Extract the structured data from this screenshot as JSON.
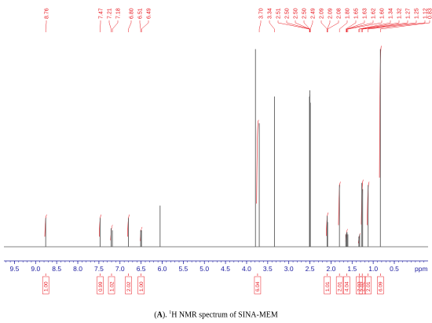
{
  "chart_data": {
    "type": "line",
    "title": "",
    "xlabel": "ppm",
    "ylabel": "",
    "x_reversed": true,
    "xlim": [
      9.75,
      -0.3
    ],
    "x_ticks": [
      "9.5",
      "9.0",
      "8.5",
      "8.0",
      "7.5",
      "7.0",
      "6.5",
      "6.0",
      "5.5",
      "5.0",
      "4.5",
      "4.0",
      "3.5",
      "3.0",
      "2.5",
      "2.0",
      "1.5",
      "1.0",
      "0.5"
    ],
    "peaks": [
      {
        "ppm": 8.76,
        "height": 0.14
      },
      {
        "ppm": 7.47,
        "height": 0.14
      },
      {
        "ppm": 7.21,
        "height": 0.09
      },
      {
        "ppm": 7.18,
        "height": 0.08
      },
      {
        "ppm": 6.8,
        "height": 0.14
      },
      {
        "ppm": 6.51,
        "height": 0.08
      },
      {
        "ppm": 6.49,
        "height": 0.08
      },
      {
        "ppm": 6.05,
        "height": 0.2
      },
      {
        "ppm": 3.79,
        "height": 0.96
      },
      {
        "ppm": 3.7,
        "height": 0.6
      },
      {
        "ppm": 3.34,
        "height": 0.73
      },
      {
        "ppm": 2.51,
        "height": 0.73
      },
      {
        "ppm": 2.5,
        "height": 0.76
      },
      {
        "ppm": 2.5,
        "height": 0.74
      },
      {
        "ppm": 2.5,
        "height": 0.72
      },
      {
        "ppm": 2.49,
        "height": 0.7
      },
      {
        "ppm": 2.09,
        "height": 0.15
      },
      {
        "ppm": 2.09,
        "height": 0.13
      },
      {
        "ppm": 2.08,
        "height": 0.12
      },
      {
        "ppm": 1.8,
        "height": 0.3
      },
      {
        "ppm": 1.65,
        "height": 0.06
      },
      {
        "ppm": 1.63,
        "height": 0.07
      },
      {
        "ppm": 1.62,
        "height": 0.07
      },
      {
        "ppm": 1.6,
        "height": 0.06
      },
      {
        "ppm": 1.34,
        "height": 0.05
      },
      {
        "ppm": 1.32,
        "height": 0.06
      },
      {
        "ppm": 1.27,
        "height": 0.31
      },
      {
        "ppm": 1.25,
        "height": 0.28
      },
      {
        "ppm": 1.12,
        "height": 0.3
      },
      {
        "ppm": 0.83,
        "height": 0.96
      }
    ],
    "peak_labels": [
      "8.76",
      "7.47",
      "7.21",
      "7.18",
      "6.80",
      "6.51",
      "6.49",
      "3.70",
      "3.34",
      "2.51",
      "2.50",
      "2.50",
      "2.50",
      "2.49",
      "2.09",
      "2.09",
      "2.08",
      "1.80",
      "1.65",
      "1.63",
      "1.62",
      "1.60",
      "1.34",
      "1.32",
      "1.27",
      "1.25",
      "1.12",
      "0.83"
    ],
    "integrals": [
      {
        "ppm": 8.76,
        "label": "1.00"
      },
      {
        "ppm": 7.47,
        "label": "0.99"
      },
      {
        "ppm": 7.2,
        "label": "1.02"
      },
      {
        "ppm": 6.8,
        "label": "2.02"
      },
      {
        "ppm": 6.5,
        "label": "1.00"
      },
      {
        "ppm": 3.74,
        "label": "6.04"
      },
      {
        "ppm": 2.09,
        "label": "1.01"
      },
      {
        "ppm": 1.8,
        "label": "2.01"
      },
      {
        "ppm": 1.63,
        "label": "4.04"
      },
      {
        "ppm": 1.33,
        "label": "2.03"
      },
      {
        "ppm": 1.26,
        "label": "2.02"
      },
      {
        "ppm": 1.12,
        "label": "2.01"
      },
      {
        "ppm": 0.83,
        "label": "6.09"
      }
    ],
    "colors": {
      "spectrum": "#5a5a5a",
      "annotation": "#e8141c",
      "axis": "#1a1a9e"
    }
  },
  "caption": {
    "letter": "A",
    "sup": "1",
    "text": "H NMR spectrum of SINA-MEM"
  }
}
